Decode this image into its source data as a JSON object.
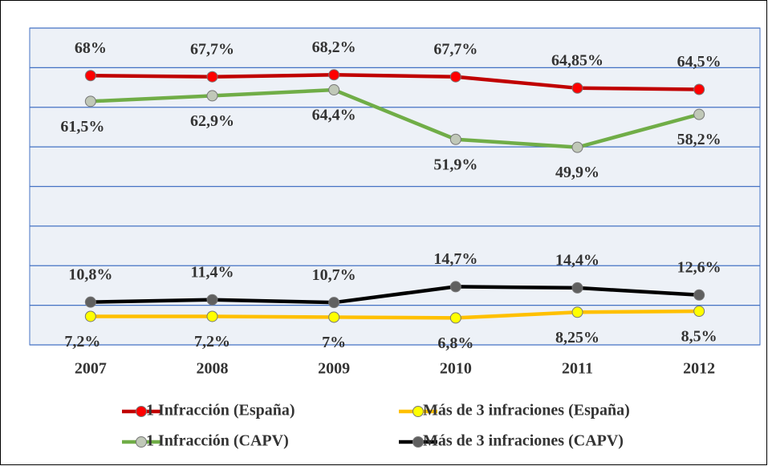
{
  "chart_data": {
    "type": "line",
    "categories": [
      "2007",
      "2008",
      "2009",
      "2010",
      "2011",
      "2012"
    ],
    "series": [
      {
        "name": "1 Infracción (España)",
        "color": "#c00000",
        "marker_color": "#ff0000",
        "values": [
          68,
          67.7,
          68.2,
          67.7,
          64.85,
          64.5
        ],
        "value_labels": [
          "68%",
          "67,7%",
          "68,2%",
          "67,7%",
          "64,85%",
          "64,5%"
        ]
      },
      {
        "name": "Más de 3 infraciones (España)",
        "color": "#ffc000",
        "marker_color": "#ffff00",
        "values": [
          7.2,
          7.2,
          7,
          6.8,
          8.25,
          8.5
        ],
        "value_labels": [
          "7,2%",
          "7,2%",
          "7%",
          "6,8%",
          "8,25%",
          "8,5%"
        ]
      },
      {
        "name": "1 Infracción (CAPV)",
        "color": "#70ad47",
        "marker_color": "#c0c8b8",
        "values": [
          61.5,
          62.9,
          64.4,
          51.9,
          49.9,
          58.2
        ],
        "value_labels": [
          "61,5%",
          "62,9%",
          "64,4%",
          "51,9%",
          "49,9%",
          "58,2%"
        ]
      },
      {
        "name": "Más de 3 infraciones (CAPV)",
        "color": "#000000",
        "marker_color": "#606060",
        "values": [
          10.8,
          11.4,
          10.7,
          14.7,
          14.4,
          12.6
        ],
        "value_labels": [
          "10,8%",
          "11,4%",
          "10,7%",
          "14,7%",
          "14,4%",
          "12,6%"
        ]
      }
    ],
    "ylim": [
      0,
      80
    ],
    "yticks": [
      0,
      10,
      20,
      30,
      40,
      50,
      60,
      70,
      80
    ],
    "grid": true,
    "legend": "bottom"
  }
}
